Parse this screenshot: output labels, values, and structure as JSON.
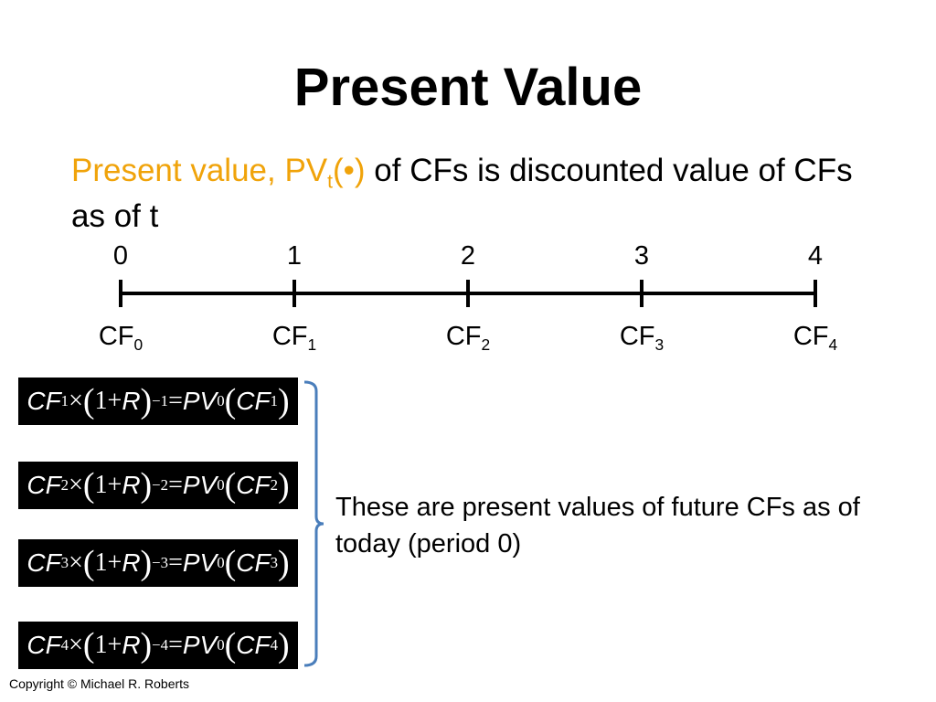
{
  "title": "Present Value",
  "definition": {
    "highlight": "Present value, PV",
    "highlight_sub": "t",
    "highlight_tail": "(•)",
    "rest": " of CFs is discounted value of CFs as of t"
  },
  "timeline": {
    "periods": [
      "0",
      "1",
      "2",
      "3",
      "4"
    ],
    "flow_label": "CF",
    "flow_subs": [
      "0",
      "1",
      "2",
      "3",
      "4"
    ]
  },
  "symbols": {
    "cf": "CF",
    "times": "×",
    "open": "(",
    "one_plus": "1+",
    "r": "R",
    "close": ")",
    "equals": "=",
    "pv": "PV",
    "pv_sub": "0"
  },
  "equations": [
    {
      "index": "1",
      "exponent": "−1"
    },
    {
      "index": "2",
      "exponent": "−2"
    },
    {
      "index": "3",
      "exponent": "−3"
    },
    {
      "index": "4",
      "exponent": "−4"
    }
  ],
  "note": "These are present values of future CFs as of today (period 0)",
  "copyright": "Copyright © Michael R. Roberts"
}
